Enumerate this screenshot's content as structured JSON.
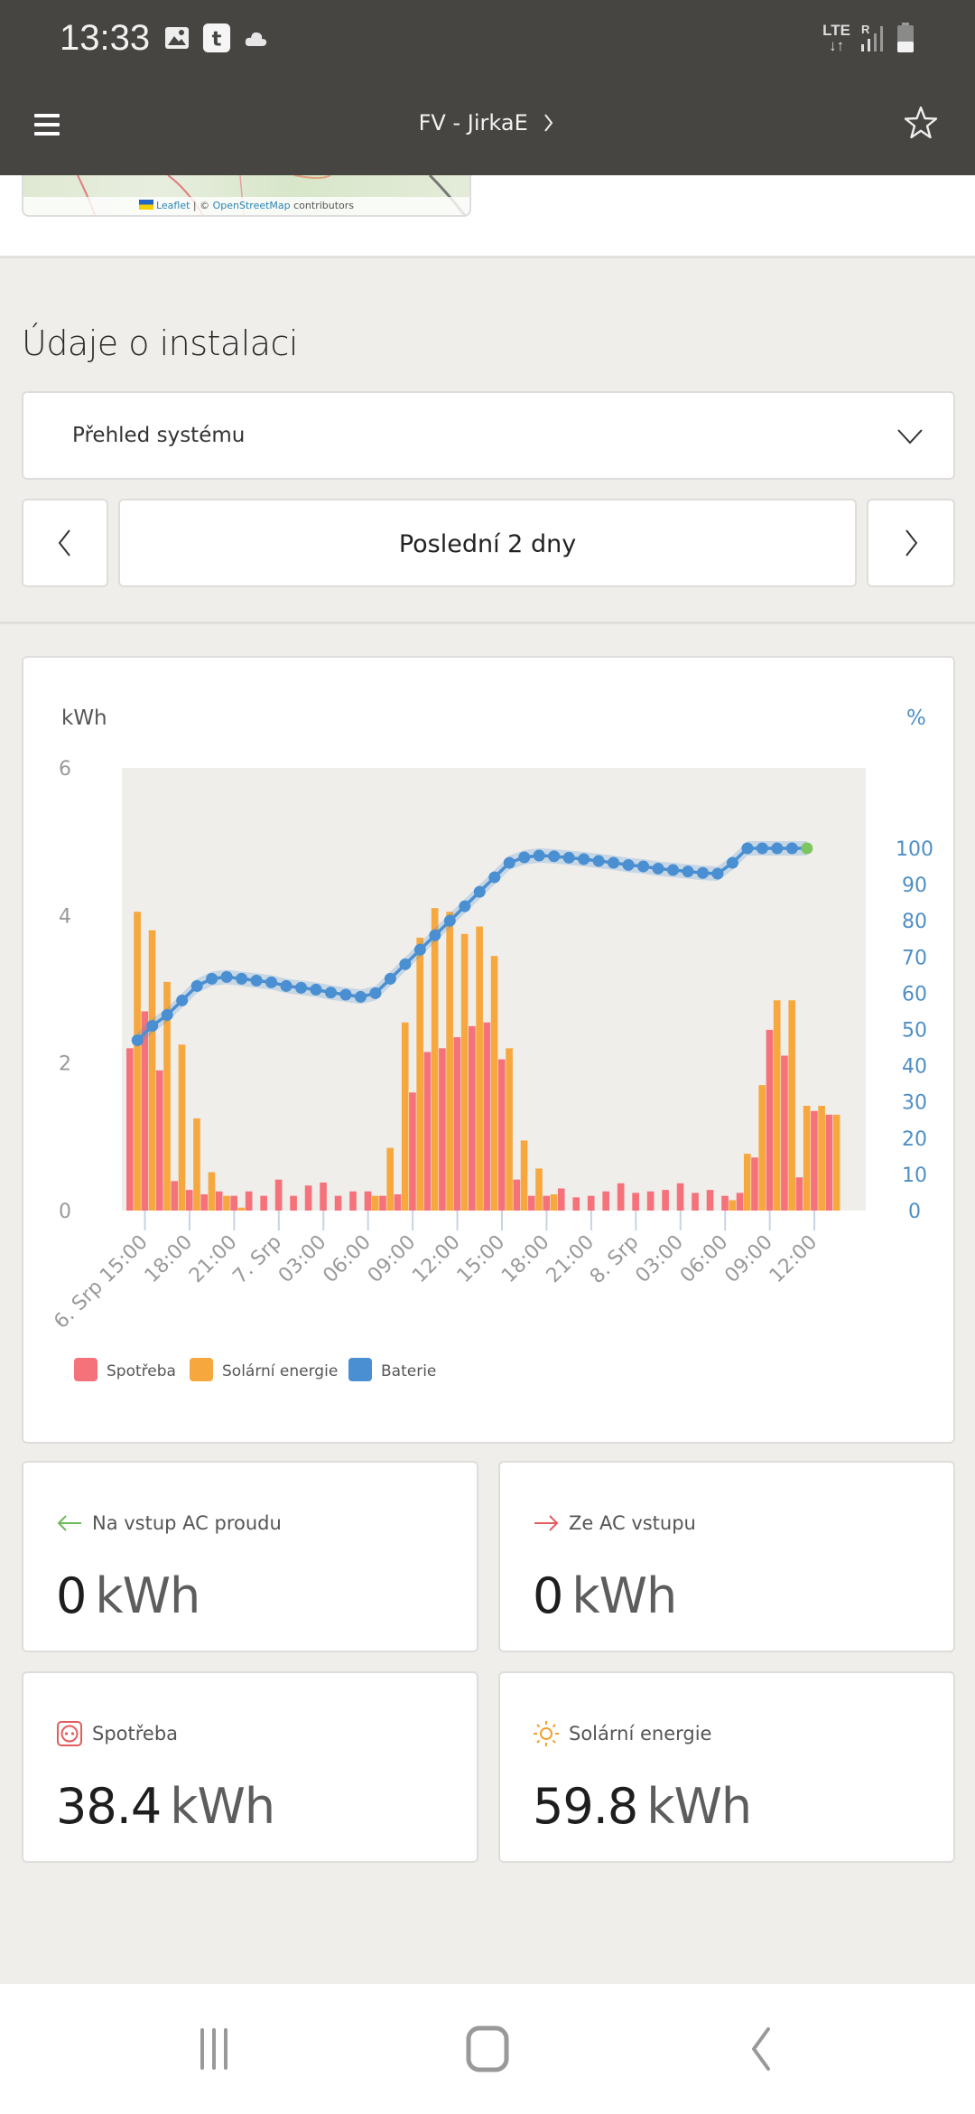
{
  "status_bar": {
    "time": "13:33",
    "notification_icons": [
      "image-icon",
      "app-t-icon",
      "cloud-icon"
    ],
    "network": "LTE",
    "roaming": "R"
  },
  "app_bar": {
    "title": "FV - JirkaE",
    "menu_icon": "hamburger-menu-icon",
    "favorite_icon": "star-icon"
  },
  "map": {
    "attribution_leaflet": "Leaflet",
    "attribution_sep": " | © ",
    "attribution_osm": "OpenStreetMap",
    "attribution_suffix": " contributors"
  },
  "section": {
    "title": "Údaje o instalaci"
  },
  "view_select": {
    "selected": "Přehled systému"
  },
  "period_nav": {
    "range_label": "Poslední 2 dny"
  },
  "colors": {
    "consumption": "#f6727b",
    "solar": "#f6a83f",
    "battery": "#4a8fd1",
    "battery_last_point": "#7cc560",
    "plot_bg": "#efeeeb",
    "right_axis": "#4f8fc4"
  },
  "chart_data": {
    "type": "bar",
    "title": "",
    "y_left_label": "kWh",
    "y_right_label": "%",
    "y_left_ticks": [
      "0",
      "2",
      "4",
      "6"
    ],
    "y_left_range": [
      0,
      6
    ],
    "y_right_ticks": [
      "0",
      "10",
      "20",
      "30",
      "40",
      "50",
      "60",
      "70",
      "80",
      "90",
      "100"
    ],
    "y_right_range": [
      0,
      150
    ],
    "x_tick_labels": [
      "6. Srp 15:00",
      "18:00",
      "21:00",
      "7. Srp",
      "03:00",
      "06:00",
      "09:00",
      "12:00",
      "15:00",
      "18:00",
      "21:00",
      "8. Srp",
      "03:00",
      "06:00",
      "09:00",
      "12:00"
    ],
    "x_tick_slot_index": [
      1,
      4,
      7,
      10,
      13,
      16,
      19,
      22,
      25,
      28,
      31,
      34,
      37,
      40,
      43,
      46
    ],
    "slots": 48,
    "legend": [
      "Spotřeba",
      "Solární energie",
      "Baterie"
    ],
    "legend_position": "bottom-left",
    "series": [
      {
        "name": "Spotřeba",
        "type": "bar",
        "values": [
          2.2,
          2.7,
          1.9,
          0.4,
          0.28,
          0.22,
          0.26,
          0.2,
          0.26,
          0.2,
          0.42,
          0.2,
          0.34,
          0.38,
          0.2,
          0.26,
          0.26,
          0.2,
          0.22,
          1.6,
          2.15,
          2.2,
          2.35,
          2.5,
          2.55,
          2.05,
          0.42,
          0.2,
          0.2,
          0.3,
          0.18,
          0.2,
          0.26,
          0.37,
          0.24,
          0.26,
          0.28,
          0.37,
          0.24,
          0.28,
          0.2,
          0.24,
          0.72,
          2.45,
          2.1,
          0.45,
          1.35,
          1.3
        ]
      },
      {
        "name": "Solární energie",
        "type": "bar",
        "values": [
          4.05,
          3.8,
          3.1,
          2.25,
          1.25,
          0.52,
          0.2,
          0.04,
          0,
          0,
          0,
          0,
          0,
          0,
          0,
          0,
          0.2,
          0.85,
          2.55,
          3.7,
          4.1,
          4.05,
          3.75,
          3.85,
          3.45,
          2.2,
          0.95,
          0.57,
          0.22,
          0,
          0,
          0,
          0,
          0,
          0,
          0,
          0,
          0,
          0,
          0,
          0.14,
          0.77,
          1.7,
          2.85,
          2.85,
          1.42,
          1.42,
          1.3
        ]
      },
      {
        "name": "Baterie",
        "type": "line",
        "axis": "right",
        "values": [
          47,
          51,
          54,
          58,
          62,
          64,
          64.5,
          64,
          63.5,
          63,
          62,
          61.5,
          61,
          60.2,
          59.6,
          59,
          60,
          64,
          68,
          72,
          76,
          80,
          84,
          88,
          92,
          96,
          97.5,
          98,
          97.8,
          97.4,
          97,
          96.5,
          96,
          95.4,
          95,
          94.4,
          94,
          93.6,
          93.2,
          93,
          96,
          100,
          100,
          100,
          100,
          100
        ],
        "start_slot": 0
      }
    ]
  },
  "stats": [
    {
      "label": "Na vstup AC proudu",
      "value": "0",
      "unit": "kWh",
      "icon": "arrow-left-icon"
    },
    {
      "label": "Ze AC vstupu",
      "value": "0",
      "unit": "kWh",
      "icon": "arrow-right-icon"
    },
    {
      "label": "Spotřeba",
      "value": "38.4",
      "unit": "kWh",
      "icon": "power-socket-icon"
    },
    {
      "label": "Solární energie",
      "value": "59.8",
      "unit": "kWh",
      "icon": "sun-icon"
    }
  ],
  "system_nav": {
    "recents": "recents-icon",
    "home": "home-icon",
    "back": "back-icon"
  }
}
